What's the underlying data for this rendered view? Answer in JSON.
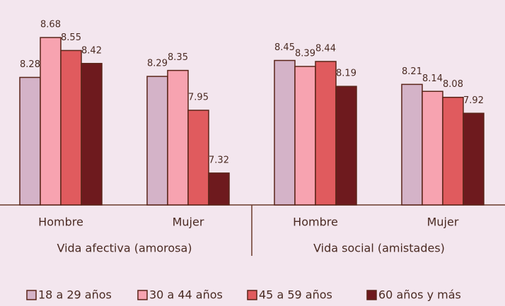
{
  "chart_data": {
    "type": "bar",
    "categories": [
      "Hombre",
      "Mujer",
      "Hombre",
      "Mujer"
    ],
    "category_groups": [
      "Vida afectiva (amorosa)",
      "Vida social (amistades)"
    ],
    "series": [
      {
        "name": "18 a 29 años",
        "color": "#d4b3c8",
        "values": [
          8.28,
          8.29,
          8.45,
          8.21
        ]
      },
      {
        "name": "30 a 44 años",
        "color": "#f7a3b0",
        "values": [
          8.68,
          8.35,
          8.39,
          8.14
        ]
      },
      {
        "name": "45 a 59 años",
        "color": "#e05b5e",
        "values": [
          8.55,
          7.95,
          8.44,
          8.08
        ]
      },
      {
        "name": "60 años y más",
        "color": "#6e1a1e",
        "values": [
          8.42,
          7.32,
          8.19,
          7.92
        ]
      }
    ],
    "ylim": [
      7,
      9
    ]
  }
}
